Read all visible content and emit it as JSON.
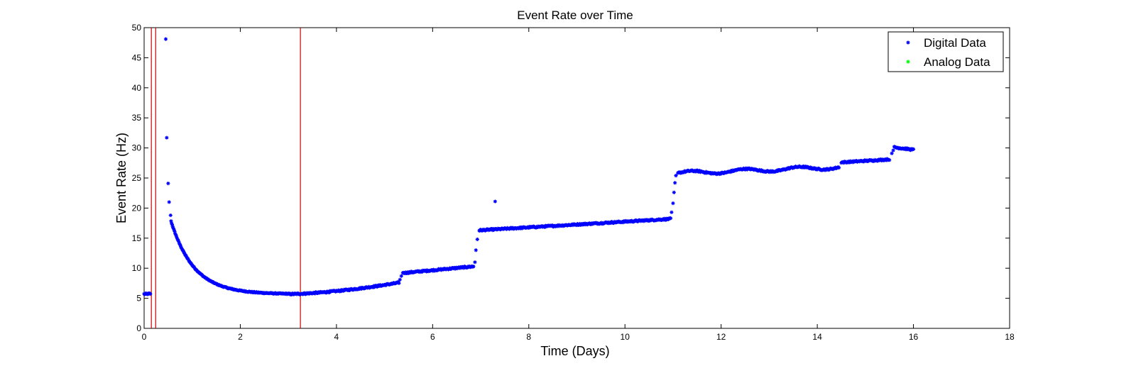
{
  "chart_data": {
    "type": "scatter",
    "title": "Event Rate over Time",
    "xlabel": "Time (Days)",
    "ylabel": "Event Rate (Hz)",
    "xlim": [
      0,
      18
    ],
    "ylim": [
      0,
      50
    ],
    "xticks": [
      0,
      2,
      4,
      6,
      8,
      10,
      12,
      14,
      16,
      18
    ],
    "yticks": [
      0,
      5,
      10,
      15,
      20,
      25,
      30,
      35,
      40,
      45,
      50
    ],
    "grid": false,
    "legend_position": "top-right",
    "vertical_lines": {
      "color": "#cc0000",
      "x": [
        0.15,
        0.24,
        3.25
      ]
    },
    "series": [
      {
        "name": "Digital Data",
        "color": "#0000ff",
        "marker": "*",
        "segments": [
          {
            "kind": "constant",
            "x0": 0.0,
            "x1": 0.13,
            "y0": 5.7,
            "y1": 5.75,
            "n": 12
          },
          {
            "kind": "points",
            "x": [
              0.45,
              0.47,
              0.5,
              0.52,
              0.55
            ],
            "y": [
              48.1,
              31.7,
              24.1,
              21.0,
              18.8
            ]
          },
          {
            "kind": "decay",
            "x0": 0.56,
            "x1": 3.0,
            "ystart": 17.8,
            "yend": 5.75,
            "tau": 0.48,
            "n": 230
          },
          {
            "kind": "linear",
            "x0": 3.0,
            "x1": 5.3,
            "y0": 5.7,
            "y1": 7.6,
            "n": 200,
            "curve": 1.6
          },
          {
            "kind": "points",
            "x": [
              5.32,
              5.35
            ],
            "y": [
              8.1,
              8.7
            ]
          },
          {
            "kind": "linear",
            "x0": 5.38,
            "x1": 6.85,
            "y0": 9.2,
            "y1": 10.3,
            "n": 130
          },
          {
            "kind": "points",
            "x": [
              6.88,
              6.9,
              6.93
            ],
            "y": [
              11.0,
              13.0,
              14.8
            ]
          },
          {
            "kind": "linear",
            "x0": 6.97,
            "x1": 10.95,
            "y0": 16.3,
            "y1": 18.2,
            "n": 330
          },
          {
            "kind": "points",
            "x": [
              7.3
            ],
            "y": [
              21.1
            ]
          },
          {
            "kind": "points",
            "x": [
              10.97,
              11.0,
              11.02,
              11.04,
              11.06
            ],
            "y": [
              19.3,
              20.8,
              22.6,
              24.2,
              25.4
            ]
          },
          {
            "kind": "linear",
            "x0": 11.1,
            "x1": 14.45,
            "y0": 25.8,
            "y1": 26.8,
            "n": 280,
            "bump": 0.3
          },
          {
            "kind": "linear",
            "x0": 14.5,
            "x1": 15.5,
            "y0": 27.6,
            "y1": 28.1,
            "n": 80
          },
          {
            "kind": "points",
            "x": [
              15.55,
              15.58
            ],
            "y": [
              29.1,
              29.6
            ]
          },
          {
            "kind": "linear",
            "x0": 15.6,
            "x1": 16.0,
            "y0": 30.1,
            "y1": 29.7,
            "n": 35
          }
        ]
      },
      {
        "name": "Analog Data",
        "color": "#00ff00",
        "marker": "*",
        "segments": []
      }
    ]
  }
}
